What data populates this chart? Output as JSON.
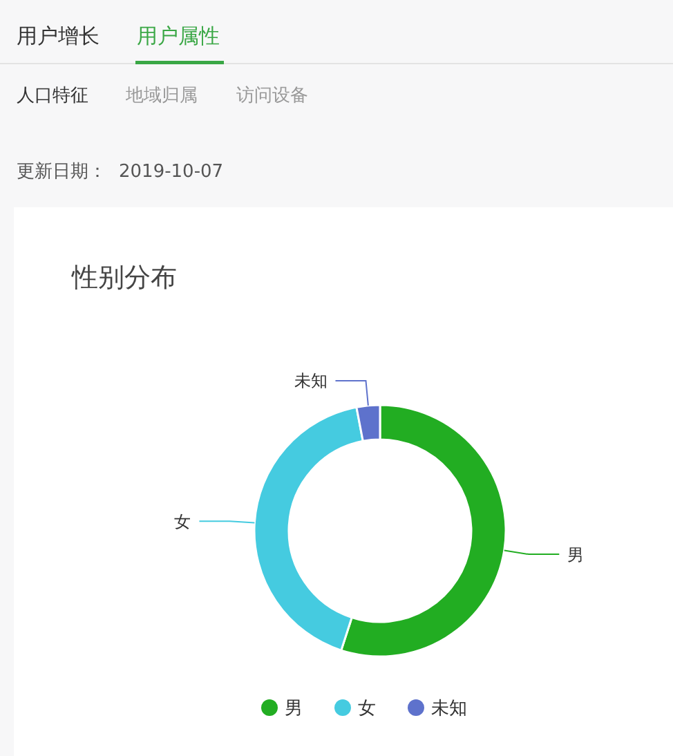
{
  "chart_data": {
    "type": "donut",
    "title": "性别分布",
    "categories": [
      "男",
      "女",
      "未知"
    ],
    "values": [
      55,
      42,
      3
    ],
    "colors": [
      "#22ad22",
      "#45cbe0",
      "#5e72cc"
    ],
    "legend": "bottom",
    "annotations": [
      "用户增长",
      "用户属性",
      "人口特征",
      "地域归属",
      "访问设备",
      "更新日期：",
      "2019-10-07"
    ]
  }
}
